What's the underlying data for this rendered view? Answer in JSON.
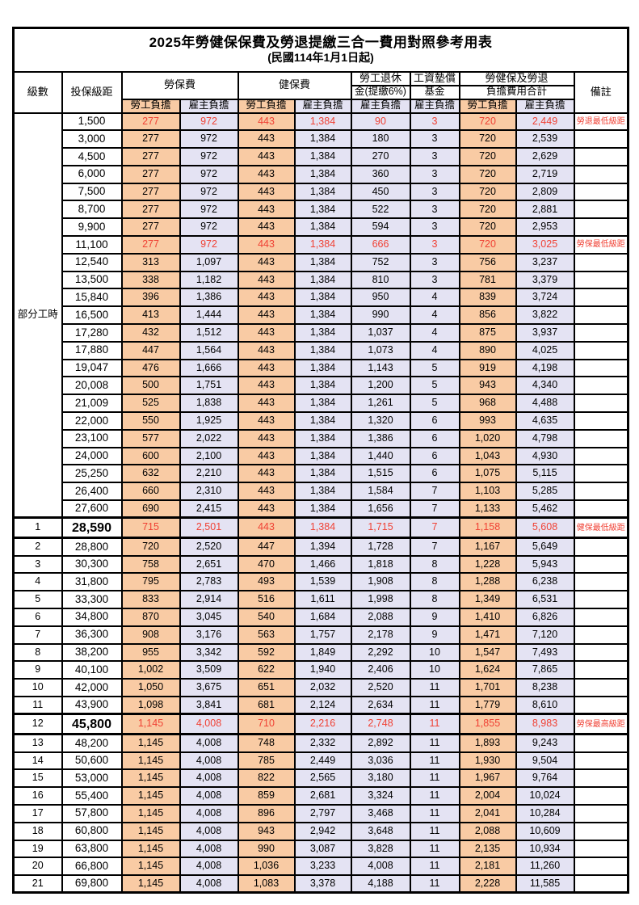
{
  "title": "2025年勞健保保費及勞退提繳三合一費用對照參考用表",
  "subtitle": "(民國114年1月1日起)",
  "header": {
    "level": "級數",
    "bracket": "投保級距",
    "labor_insurance": "勞保費",
    "health_insurance": "健保費",
    "pension_line1": "勞工退休",
    "pension_line2": "金(提繳6%)",
    "wage_fund_line1": "工資墊償",
    "wage_fund_line2": "基金",
    "total_line1": "勞健保及勞退",
    "total_line2": "負擔費用合計",
    "note": "備註",
    "employee_label": "勞工負擔",
    "employer_label": "雇主負擔"
  },
  "part_time_label": "部分工時",
  "part_time_rowspan": 23,
  "colors": {
    "employee_bg": "#F9CBA4",
    "employer_bg": "#E4E3F3",
    "red_text": "#F04134",
    "border": "#000000"
  },
  "rows": [
    {
      "level": "",
      "bracket": "1,500",
      "values": [
        "277",
        "972",
        "443",
        "1,384",
        "90",
        "3",
        "720",
        "2,449"
      ],
      "note": "勞退最低級距",
      "red": true,
      "big": false
    },
    {
      "level": "",
      "bracket": "3,000",
      "values": [
        "277",
        "972",
        "443",
        "1,384",
        "180",
        "3",
        "720",
        "2,539"
      ],
      "note": "",
      "red": false,
      "big": false
    },
    {
      "level": "",
      "bracket": "4,500",
      "values": [
        "277",
        "972",
        "443",
        "1,384",
        "270",
        "3",
        "720",
        "2,629"
      ],
      "note": "",
      "red": false,
      "big": false
    },
    {
      "level": "",
      "bracket": "6,000",
      "values": [
        "277",
        "972",
        "443",
        "1,384",
        "360",
        "3",
        "720",
        "2,719"
      ],
      "note": "",
      "red": false,
      "big": false
    },
    {
      "level": "",
      "bracket": "7,500",
      "values": [
        "277",
        "972",
        "443",
        "1,384",
        "450",
        "3",
        "720",
        "2,809"
      ],
      "note": "",
      "red": false,
      "big": false
    },
    {
      "level": "",
      "bracket": "8,700",
      "values": [
        "277",
        "972",
        "443",
        "1,384",
        "522",
        "3",
        "720",
        "2,881"
      ],
      "note": "",
      "red": false,
      "big": false
    },
    {
      "level": "",
      "bracket": "9,900",
      "values": [
        "277",
        "972",
        "443",
        "1,384",
        "594",
        "3",
        "720",
        "2,953"
      ],
      "note": "",
      "red": false,
      "big": false
    },
    {
      "level": "",
      "bracket": "11,100",
      "values": [
        "277",
        "972",
        "443",
        "1,384",
        "666",
        "3",
        "720",
        "3,025"
      ],
      "note": "勞保最低級距",
      "red": true,
      "big": false
    },
    {
      "level": "",
      "bracket": "12,540",
      "values": [
        "313",
        "1,097",
        "443",
        "1,384",
        "752",
        "3",
        "756",
        "3,237"
      ],
      "note": "",
      "red": false,
      "big": false
    },
    {
      "level": "",
      "bracket": "13,500",
      "values": [
        "338",
        "1,182",
        "443",
        "1,384",
        "810",
        "3",
        "781",
        "3,379"
      ],
      "note": "",
      "red": false,
      "big": false
    },
    {
      "level": "",
      "bracket": "15,840",
      "values": [
        "396",
        "1,386",
        "443",
        "1,384",
        "950",
        "4",
        "839",
        "3,724"
      ],
      "note": "",
      "red": false,
      "big": false
    },
    {
      "level": "",
      "bracket": "16,500",
      "values": [
        "413",
        "1,444",
        "443",
        "1,384",
        "990",
        "4",
        "856",
        "3,822"
      ],
      "note": "",
      "red": false,
      "big": false
    },
    {
      "level": "",
      "bracket": "17,280",
      "values": [
        "432",
        "1,512",
        "443",
        "1,384",
        "1,037",
        "4",
        "875",
        "3,937"
      ],
      "note": "",
      "red": false,
      "big": false
    },
    {
      "level": "",
      "bracket": "17,880",
      "values": [
        "447",
        "1,564",
        "443",
        "1,384",
        "1,073",
        "4",
        "890",
        "4,025"
      ],
      "note": "",
      "red": false,
      "big": false
    },
    {
      "level": "",
      "bracket": "19,047",
      "values": [
        "476",
        "1,666",
        "443",
        "1,384",
        "1,143",
        "5",
        "919",
        "4,198"
      ],
      "note": "",
      "red": false,
      "big": false
    },
    {
      "level": "",
      "bracket": "20,008",
      "values": [
        "500",
        "1,751",
        "443",
        "1,384",
        "1,200",
        "5",
        "943",
        "4,340"
      ],
      "note": "",
      "red": false,
      "big": false
    },
    {
      "level": "",
      "bracket": "21,009",
      "values": [
        "525",
        "1,838",
        "443",
        "1,384",
        "1,261",
        "5",
        "968",
        "4,488"
      ],
      "note": "",
      "red": false,
      "big": false
    },
    {
      "level": "",
      "bracket": "22,000",
      "values": [
        "550",
        "1,925",
        "443",
        "1,384",
        "1,320",
        "6",
        "993",
        "4,635"
      ],
      "note": "",
      "red": false,
      "big": false
    },
    {
      "level": "",
      "bracket": "23,100",
      "values": [
        "577",
        "2,022",
        "443",
        "1,384",
        "1,386",
        "6",
        "1,020",
        "4,798"
      ],
      "note": "",
      "red": false,
      "big": false
    },
    {
      "level": "",
      "bracket": "24,000",
      "values": [
        "600",
        "2,100",
        "443",
        "1,384",
        "1,440",
        "6",
        "1,043",
        "4,930"
      ],
      "note": "",
      "red": false,
      "big": false
    },
    {
      "level": "",
      "bracket": "25,250",
      "values": [
        "632",
        "2,210",
        "443",
        "1,384",
        "1,515",
        "6",
        "1,075",
        "5,115"
      ],
      "note": "",
      "red": false,
      "big": false
    },
    {
      "level": "",
      "bracket": "26,400",
      "values": [
        "660",
        "2,310",
        "443",
        "1,384",
        "1,584",
        "7",
        "1,103",
        "5,285"
      ],
      "note": "",
      "red": false,
      "big": false
    },
    {
      "level": "",
      "bracket": "27,600",
      "values": [
        "690",
        "2,415",
        "443",
        "1,384",
        "1,656",
        "7",
        "1,133",
        "5,462"
      ],
      "note": "",
      "red": false,
      "big": false
    },
    {
      "level": "1",
      "bracket": "28,590",
      "values": [
        "715",
        "2,501",
        "443",
        "1,384",
        "1,715",
        "7",
        "1,158",
        "5,608"
      ],
      "note": "健保最低級距",
      "red": true,
      "big": true
    },
    {
      "level": "2",
      "bracket": "28,800",
      "values": [
        "720",
        "2,520",
        "447",
        "1,394",
        "1,728",
        "7",
        "1,167",
        "5,649"
      ],
      "note": "",
      "red": false,
      "big": false
    },
    {
      "level": "3",
      "bracket": "30,300",
      "values": [
        "758",
        "2,651",
        "470",
        "1,466",
        "1,818",
        "8",
        "1,228",
        "5,943"
      ],
      "note": "",
      "red": false,
      "big": false
    },
    {
      "level": "4",
      "bracket": "31,800",
      "values": [
        "795",
        "2,783",
        "493",
        "1,539",
        "1,908",
        "8",
        "1,288",
        "6,238"
      ],
      "note": "",
      "red": false,
      "big": false
    },
    {
      "level": "5",
      "bracket": "33,300",
      "values": [
        "833",
        "2,914",
        "516",
        "1,611",
        "1,998",
        "8",
        "1,349",
        "6,531"
      ],
      "note": "",
      "red": false,
      "big": false
    },
    {
      "level": "6",
      "bracket": "34,800",
      "values": [
        "870",
        "3,045",
        "540",
        "1,684",
        "2,088",
        "9",
        "1,410",
        "6,826"
      ],
      "note": "",
      "red": false,
      "big": false
    },
    {
      "level": "7",
      "bracket": "36,300",
      "values": [
        "908",
        "3,176",
        "563",
        "1,757",
        "2,178",
        "9",
        "1,471",
        "7,120"
      ],
      "note": "",
      "red": false,
      "big": false
    },
    {
      "level": "8",
      "bracket": "38,200",
      "values": [
        "955",
        "3,342",
        "592",
        "1,849",
        "2,292",
        "10",
        "1,547",
        "7,493"
      ],
      "note": "",
      "red": false,
      "big": false
    },
    {
      "level": "9",
      "bracket": "40,100",
      "values": [
        "1,002",
        "3,509",
        "622",
        "1,940",
        "2,406",
        "10",
        "1,624",
        "7,865"
      ],
      "note": "",
      "red": false,
      "big": false
    },
    {
      "level": "10",
      "bracket": "42,000",
      "values": [
        "1,050",
        "3,675",
        "651",
        "2,032",
        "2,520",
        "11",
        "1,701",
        "8,238"
      ],
      "note": "",
      "red": false,
      "big": false
    },
    {
      "level": "11",
      "bracket": "43,900",
      "values": [
        "1,098",
        "3,841",
        "681",
        "2,124",
        "2,634",
        "11",
        "1,779",
        "8,610"
      ],
      "note": "",
      "red": false,
      "big": false
    },
    {
      "level": "12",
      "bracket": "45,800",
      "values": [
        "1,145",
        "4,008",
        "710",
        "2,216",
        "2,748",
        "11",
        "1,855",
        "8,983"
      ],
      "note": "勞保最高級距",
      "red": true,
      "big": true
    },
    {
      "level": "13",
      "bracket": "48,200",
      "values": [
        "1,145",
        "4,008",
        "748",
        "2,332",
        "2,892",
        "11",
        "1,893",
        "9,243"
      ],
      "note": "",
      "red": false,
      "big": false
    },
    {
      "level": "14",
      "bracket": "50,600",
      "values": [
        "1,145",
        "4,008",
        "785",
        "2,449",
        "3,036",
        "11",
        "1,930",
        "9,504"
      ],
      "note": "",
      "red": false,
      "big": false
    },
    {
      "level": "15",
      "bracket": "53,000",
      "values": [
        "1,145",
        "4,008",
        "822",
        "2,565",
        "3,180",
        "11",
        "1,967",
        "9,764"
      ],
      "note": "",
      "red": false,
      "big": false
    },
    {
      "level": "16",
      "bracket": "55,400",
      "values": [
        "1,145",
        "4,008",
        "859",
        "2,681",
        "3,324",
        "11",
        "2,004",
        "10,024"
      ],
      "note": "",
      "red": false,
      "big": false
    },
    {
      "level": "17",
      "bracket": "57,800",
      "values": [
        "1,145",
        "4,008",
        "896",
        "2,797",
        "3,468",
        "11",
        "2,041",
        "10,284"
      ],
      "note": "",
      "red": false,
      "big": false
    },
    {
      "level": "18",
      "bracket": "60,800",
      "values": [
        "1,145",
        "4,008",
        "943",
        "2,942",
        "3,648",
        "11",
        "2,088",
        "10,609"
      ],
      "note": "",
      "red": false,
      "big": false
    },
    {
      "level": "19",
      "bracket": "63,800",
      "values": [
        "1,145",
        "4,008",
        "990",
        "3,087",
        "3,828",
        "11",
        "2,135",
        "10,934"
      ],
      "note": "",
      "red": false,
      "big": false
    },
    {
      "level": "20",
      "bracket": "66,800",
      "values": [
        "1,145",
        "4,008",
        "1,036",
        "3,233",
        "4,008",
        "11",
        "2,181",
        "11,260"
      ],
      "note": "",
      "red": false,
      "big": false
    },
    {
      "level": "21",
      "bracket": "69,800",
      "values": [
        "1,145",
        "4,008",
        "1,083",
        "3,378",
        "4,188",
        "11",
        "2,228",
        "11,585"
      ],
      "note": "",
      "red": false,
      "big": false
    }
  ]
}
